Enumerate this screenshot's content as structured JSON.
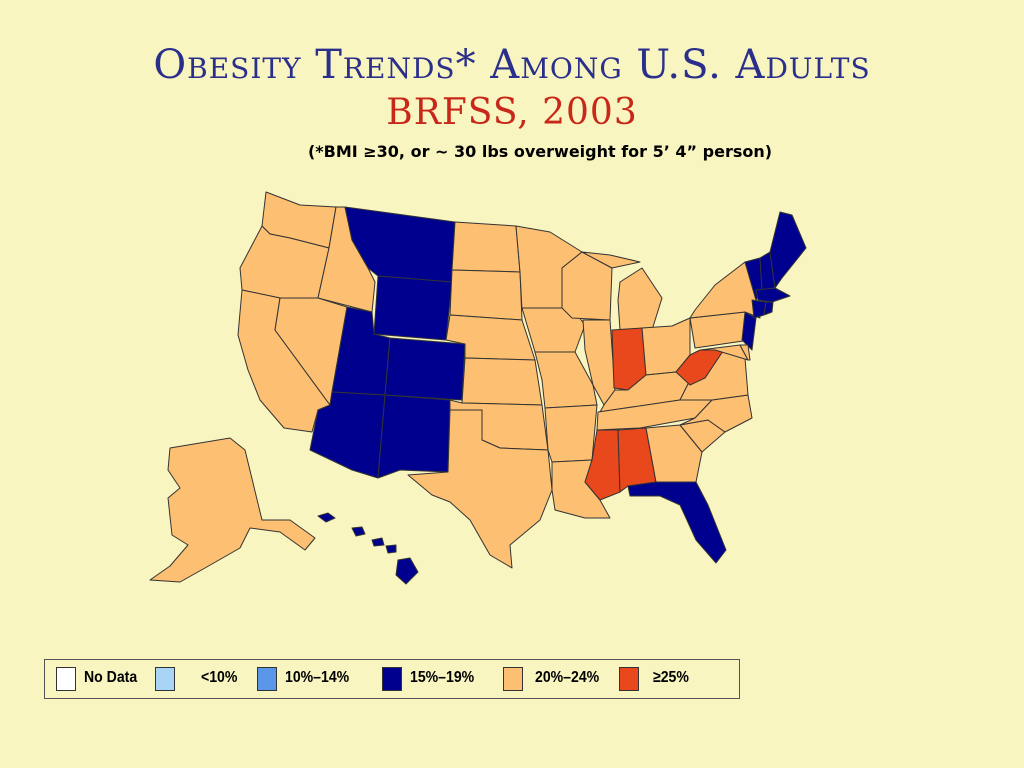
{
  "title": {
    "main": "Obesity Trends* Among U.S. Adults",
    "sub": "BRFSS, 2003",
    "note": "(*BMI ≥30, or ~ 30 lbs overweight for 5’ 4” person)"
  },
  "legend": [
    {
      "label": "No Data",
      "color": "#ffffff"
    },
    {
      "label": "<10%",
      "color": "#a8d4f5"
    },
    {
      "label": "10%–14%",
      "color": "#5a96e8"
    },
    {
      "label": "15%–19%",
      "color": "#00008f"
    },
    {
      "label": "20%–24%",
      "color": "#fdbf72"
    },
    {
      "label": "≥25%",
      "color": "#e9471c"
    }
  ],
  "states": {
    "WA": "20%–24%",
    "OR": "20%–24%",
    "CA": "20%–24%",
    "ID": "20%–24%",
    "NV": "20%–24%",
    "MT": "15%–19%",
    "WY": "15%–19%",
    "UT": "15%–19%",
    "CO": "15%–19%",
    "AZ": "15%–19%",
    "NM": "15%–19%",
    "ND": "20%–24%",
    "SD": "20%–24%",
    "NE": "20%–24%",
    "KS": "20%–24%",
    "OK": "20%–24%",
    "TX": "20%–24%",
    "MN": "20%–24%",
    "IA": "20%–24%",
    "MO": "20%–24%",
    "AR": "20%–24%",
    "LA": "20%–24%",
    "WI": "20%–24%",
    "IL": "20%–24%",
    "MI": "20%–24%",
    "IN": "≥25%",
    "OH": "20%–24%",
    "KY": "20%–24%",
    "TN": "20%–24%",
    "MS": "≥25%",
    "AL": "≥25%",
    "GA": "20%–24%",
    "FL": "15%–19%",
    "SC": "20%–24%",
    "NC": "20%–24%",
    "VA": "20%–24%",
    "WV": "≥25%",
    "PA": "20%–24%",
    "NY": "20%–24%",
    "NJ": "15%–19%",
    "DE": "20%–24%",
    "MD": "20%–24%",
    "VT": "15%–19%",
    "NH": "15%–19%",
    "ME": "15%–19%",
    "MA": "15%–19%",
    "CT": "15%–19%",
    "RI": "15%–19%",
    "AK": "20%–24%",
    "HI": "15%–19%"
  }
}
